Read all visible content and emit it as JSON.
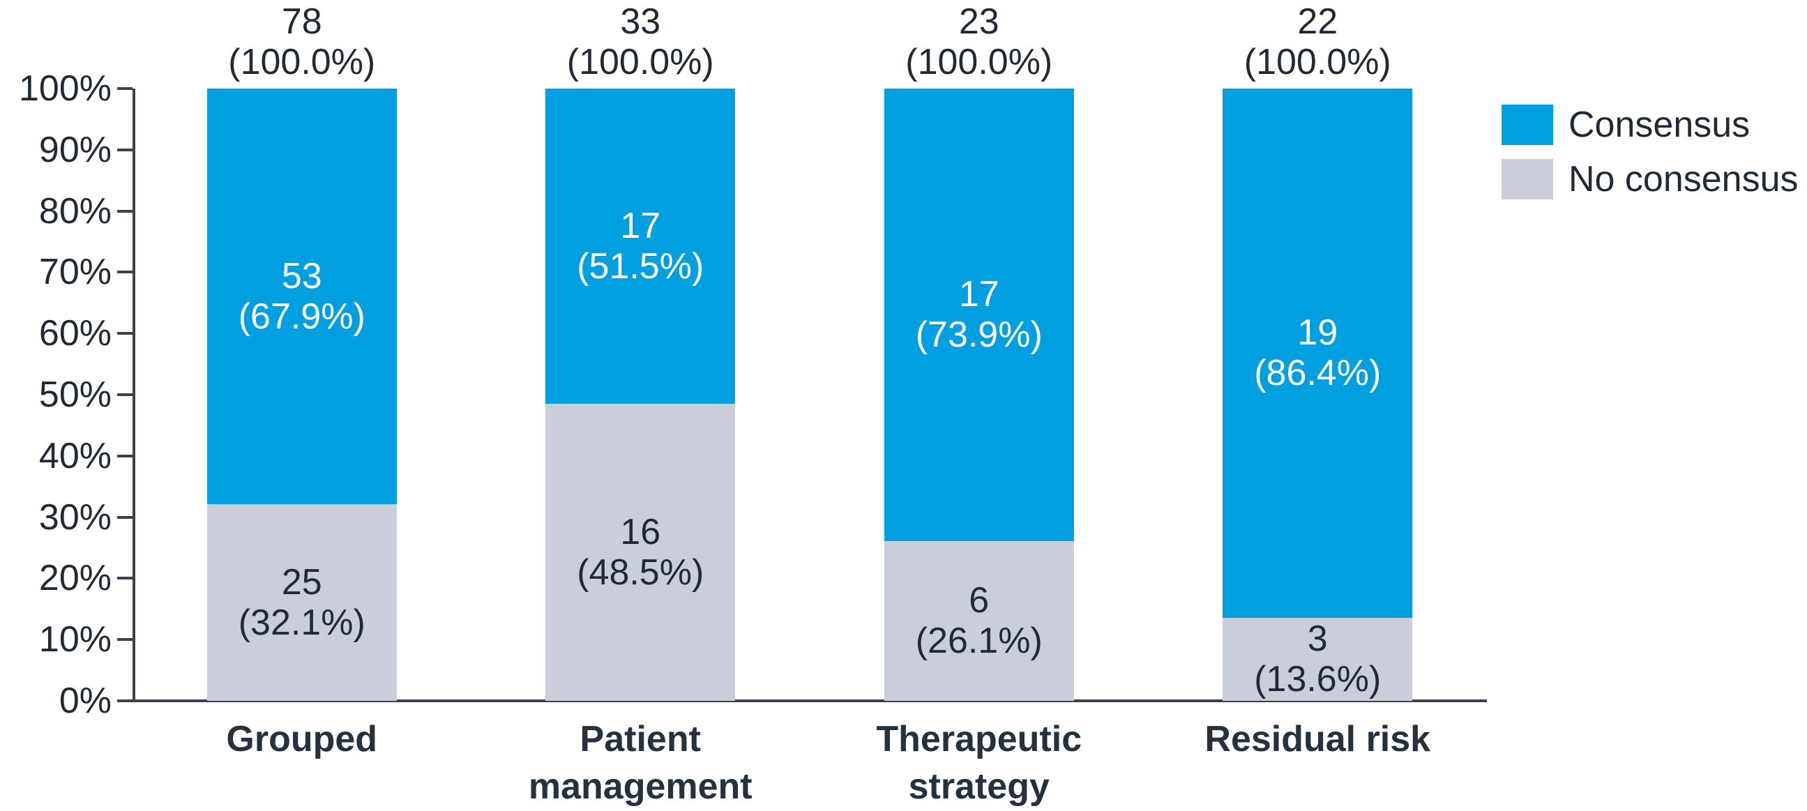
{
  "chart_data": {
    "type": "bar",
    "stacked": true,
    "title": "",
    "xlabel": "",
    "ylabel": "",
    "grid": false,
    "legend_position": "top-right",
    "categories": [
      "Grouped",
      "Patient management",
      "Therapeutic strategy",
      "Residual risk"
    ],
    "category_label_lines": [
      [
        "Grouped"
      ],
      [
        "Patient",
        "management"
      ],
      [
        "Therapeutic",
        "strategy"
      ],
      [
        "Residual risk"
      ]
    ],
    "totals": [
      {
        "count": "78",
        "pct_label": "(100.0%)"
      },
      {
        "count": "33",
        "pct_label": "(100.0%)"
      },
      {
        "count": "23",
        "pct_label": "(100.0%)"
      },
      {
        "count": "22",
        "pct_label": "(100.0%)"
      }
    ],
    "series": [
      {
        "name": "Consensus",
        "color": "#009FE0",
        "label_color": "#FFFFFF",
        "counts": [
          "53",
          "17",
          "17",
          "19"
        ],
        "percents": [
          67.9,
          51.5,
          73.9,
          86.4
        ],
        "pct_labels": [
          "(67.9%)",
          "(51.5%)",
          "(73.9%)",
          "(86.4%)"
        ]
      },
      {
        "name": "No consensus",
        "color": "#C9CEDA",
        "label_color": "#1F2A35",
        "counts": [
          "25",
          "16",
          "6",
          "3"
        ],
        "percents": [
          32.1,
          48.5,
          26.1,
          13.6
        ],
        "pct_labels": [
          "(32.1%)",
          "(48.5%)",
          "(26.1%)",
          "(13.6%)"
        ]
      }
    ],
    "y_axis": {
      "min": 0,
      "max": 100,
      "tick_step": 10,
      "tick_labels": [
        "0%",
        "10%",
        "20%",
        "30%",
        "40%",
        "50%",
        "60%",
        "70%",
        "80%",
        "90%",
        "100%"
      ]
    },
    "legend": {
      "entries": [
        "Consensus",
        "No consensus"
      ]
    }
  },
  "colors": {
    "consensus_blue": "#009FE0",
    "no_consensus_gray": "#C9CEDA",
    "text_dark": "#1F2A35",
    "axis": "#39424D",
    "background": "#FFFFFF"
  }
}
